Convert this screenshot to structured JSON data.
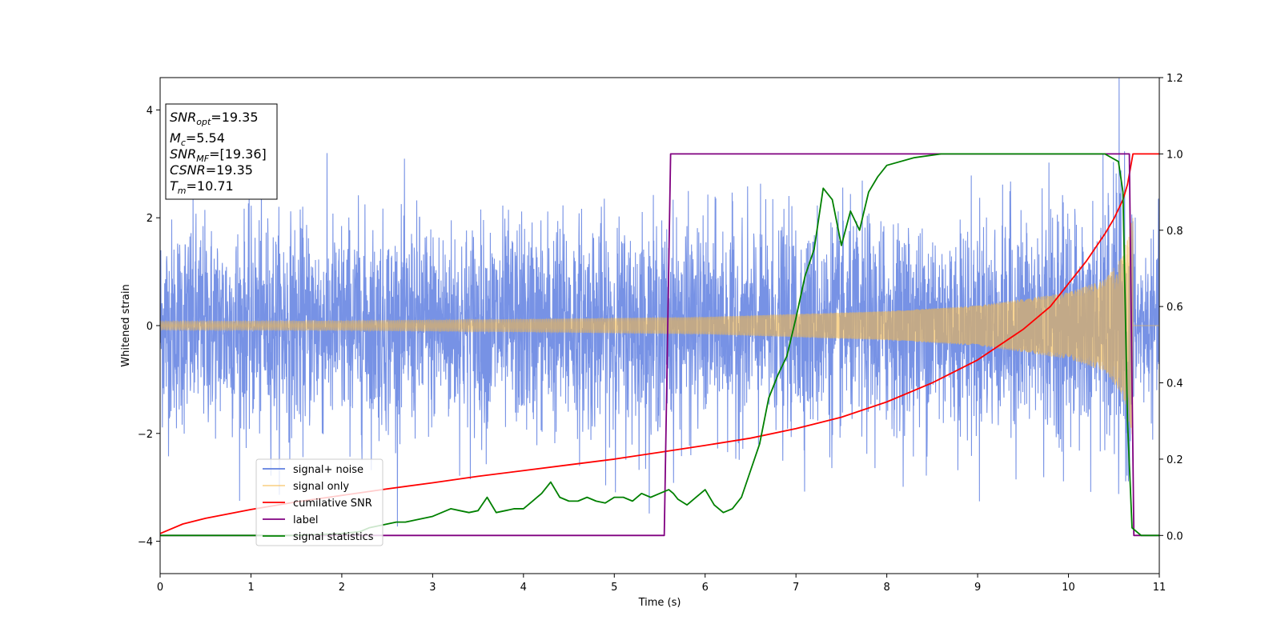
{
  "chart_data": {
    "type": "line",
    "xlabel": "Time (s)",
    "ylabel": "Whitened strain",
    "xlim": [
      0,
      11
    ],
    "ylim_left": [
      -4.6,
      4.6
    ],
    "ylim_right": [
      -0.1,
      1.2
    ],
    "x_ticks": [
      "0",
      "1",
      "2",
      "3",
      "4",
      "5",
      "6",
      "7",
      "8",
      "9",
      "10",
      "11"
    ],
    "y_ticks_left": [
      "−4",
      "−2",
      "0",
      "2",
      "4"
    ],
    "y_ticks_right": [
      "0.0",
      "0.2",
      "0.4",
      "0.6",
      "0.8",
      "1.0",
      "1.2"
    ],
    "grid": false,
    "legend_position": "lower-left",
    "annotation": {
      "snr_opt": {
        "main": "SNR",
        "sub": "opt",
        "value": "=19.35"
      },
      "mc": {
        "main": "M",
        "sub": "c",
        "value": "=5.54"
      },
      "snr_mf": {
        "main": "SNR",
        "sub": "MF",
        "value": "=[19.36]"
      },
      "csnr": {
        "main": "CSNR",
        "value": "=19.35"
      },
      "tm": {
        "main": "T",
        "sub": "m",
        "value": "=10.71"
      }
    },
    "series": [
      {
        "name": "signal+ noise",
        "color": "#5f7fe0",
        "axis": "left",
        "noise_std": 0.95,
        "t_merger": 10.71
      },
      {
        "name": "signal only",
        "color": "#f5b94a",
        "axis": "left",
        "envelope": [
          [
            0,
            0.08
          ],
          [
            2,
            0.09
          ],
          [
            4,
            0.12
          ],
          [
            6,
            0.16
          ],
          [
            8,
            0.27
          ],
          [
            9,
            0.37
          ],
          [
            10,
            0.62
          ],
          [
            10.4,
            0.85
          ],
          [
            10.6,
            1.3
          ],
          [
            10.71,
            2.1
          ]
        ]
      },
      {
        "name": "cumilative SNR",
        "color": "#ff0000",
        "axis": "right",
        "x": [
          0,
          0.25,
          0.5,
          1,
          1.5,
          2,
          2.5,
          3,
          3.5,
          4,
          4.5,
          5,
          5.5,
          6,
          6.5,
          7,
          7.5,
          8,
          8.5,
          9,
          9.5,
          9.8,
          10,
          10.2,
          10.4,
          10.5,
          10.6,
          10.65,
          10.71,
          11
        ],
        "y": [
          0.005,
          0.03,
          0.045,
          0.068,
          0.088,
          0.105,
          0.122,
          0.138,
          0.155,
          0.17,
          0.185,
          0.2,
          0.218,
          0.236,
          0.255,
          0.28,
          0.31,
          0.35,
          0.4,
          0.46,
          0.54,
          0.6,
          0.66,
          0.72,
          0.79,
          0.83,
          0.88,
          0.92,
          1.0,
          1.0
        ]
      },
      {
        "name": "label",
        "color": "#800080",
        "axis": "right",
        "x": [
          0,
          5.55,
          5.62,
          10.67,
          10.72,
          11
        ],
        "y": [
          0,
          0,
          1,
          1,
          0,
          0
        ]
      },
      {
        "name": "signal statistics",
        "color": "#008000",
        "axis": "right",
        "x": [
          0,
          0.5,
          1.0,
          1.5,
          2.0,
          2.2,
          2.3,
          2.4,
          2.5,
          2.6,
          2.7,
          2.8,
          2.9,
          3.0,
          3.1,
          3.2,
          3.3,
          3.4,
          3.5,
          3.6,
          3.7,
          3.8,
          3.9,
          4.0,
          4.1,
          4.15,
          4.2,
          4.3,
          4.4,
          4.5,
          4.6,
          4.7,
          4.8,
          4.9,
          5.0,
          5.1,
          5.2,
          5.3,
          5.4,
          5.5,
          5.6,
          5.65,
          5.7,
          5.8,
          5.9,
          6.0,
          6.1,
          6.2,
          6.3,
          6.4,
          6.5,
          6.6,
          6.7,
          6.8,
          6.9,
          7.0,
          7.1,
          7.2,
          7.3,
          7.4,
          7.5,
          7.6,
          7.7,
          7.8,
          7.9,
          8.0,
          8.3,
          8.6,
          9.0,
          9.5,
          10.0,
          10.4,
          10.55,
          10.6,
          10.65,
          10.7,
          10.8,
          11.0
        ],
        "y": [
          0.0,
          0.0,
          0.0,
          0.0,
          0.005,
          0.01,
          0.02,
          0.025,
          0.03,
          0.035,
          0.035,
          0.04,
          0.045,
          0.05,
          0.06,
          0.07,
          0.065,
          0.06,
          0.065,
          0.1,
          0.06,
          0.065,
          0.07,
          0.07,
          0.09,
          0.1,
          0.11,
          0.14,
          0.1,
          0.09,
          0.09,
          0.1,
          0.09,
          0.085,
          0.1,
          0.1,
          0.09,
          0.11,
          0.1,
          0.11,
          0.12,
          0.11,
          0.095,
          0.08,
          0.1,
          0.12,
          0.08,
          0.06,
          0.07,
          0.1,
          0.17,
          0.24,
          0.36,
          0.42,
          0.47,
          0.57,
          0.68,
          0.75,
          0.91,
          0.88,
          0.76,
          0.85,
          0.8,
          0.9,
          0.94,
          0.97,
          0.99,
          1.0,
          1.0,
          1.0,
          1.0,
          1.0,
          0.98,
          0.9,
          0.3,
          0.02,
          0.0,
          0.0
        ]
      }
    ]
  }
}
